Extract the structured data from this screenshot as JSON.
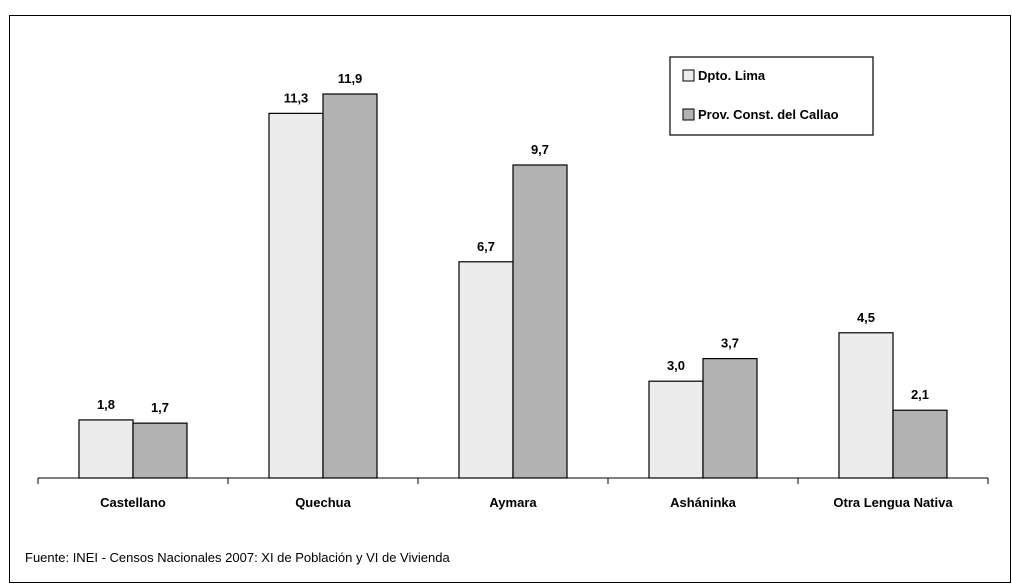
{
  "chart_data": {
    "type": "bar",
    "categories": [
      "Castellano",
      "Quechua",
      "Aymara",
      "Asháninka",
      "Otra Lengua Nativa"
    ],
    "series": [
      {
        "name": "Dpto. Lima",
        "values": [
          1.8,
          11.3,
          6.7,
          3.0,
          4.5
        ],
        "labels": [
          "1,8",
          "11,3",
          "6,7",
          "3,0",
          "4,5"
        ]
      },
      {
        "name": "Prov. Const. del Callao",
        "values": [
          1.7,
          11.9,
          9.7,
          3.7,
          2.1
        ],
        "labels": [
          "1,7",
          "11,9",
          "9,7",
          "3,7",
          "2,1"
        ]
      }
    ],
    "ylim": [
      0,
      13
    ],
    "grid": false,
    "legend_position": "top-right",
    "colors": {
      "Dpto. Lima": "#ececec",
      "Prov. Const. del Callao": "#b2b2b2"
    }
  },
  "source_note": "Fuente: INEI - Censos Nacionales 2007: XI de Población y VI de Vivienda"
}
